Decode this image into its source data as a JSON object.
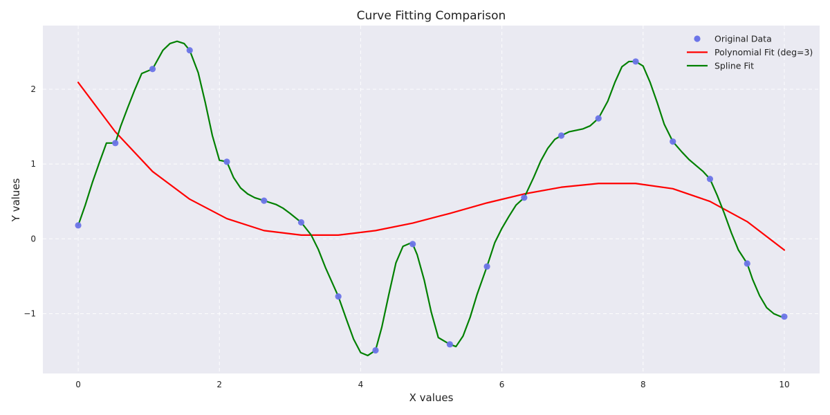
{
  "chart_data": {
    "type": "line",
    "title": "Curve Fitting Comparison",
    "xlabel": "X values",
    "ylabel": "Y values",
    "xlim": [
      -0.5,
      10.5
    ],
    "ylim": [
      -1.8,
      2.85
    ],
    "xticks": [
      0,
      2,
      4,
      6,
      8,
      10
    ],
    "xtick_labels": [
      "0",
      "2",
      "4",
      "6",
      "8",
      "10"
    ],
    "yticks": [
      -1,
      0,
      1,
      2
    ],
    "ytick_labels": [
      "−1",
      "0",
      "1",
      "2"
    ],
    "grid": true,
    "legend_position": "top-right",
    "background_color": "#eaeaf2",
    "series": [
      {
        "name": "Original Data",
        "kind": "scatter",
        "color": "#6b74e8",
        "x": [
          0,
          0.526,
          1.053,
          1.579,
          2.105,
          2.632,
          3.158,
          3.684,
          4.211,
          4.737,
          5.263,
          5.789,
          6.316,
          6.842,
          7.368,
          7.895,
          8.421,
          8.947,
          9.474,
          10
        ],
        "y": [
          0.18,
          1.28,
          2.27,
          2.52,
          1.03,
          0.51,
          0.22,
          -0.77,
          -1.49,
          -0.07,
          -1.41,
          -0.37,
          0.55,
          1.38,
          1.61,
          2.37,
          1.3,
          0.8,
          -0.33,
          -1.04
        ]
      },
      {
        "name": "Polynomial Fit (deg=3)",
        "kind": "line",
        "color": "#ff0000",
        "x": [
          0,
          0.526,
          1.053,
          1.579,
          2.105,
          2.632,
          3.158,
          3.684,
          4.211,
          4.737,
          5.263,
          5.789,
          6.316,
          6.842,
          7.368,
          7.895,
          8.421,
          8.947,
          9.474,
          10
        ],
        "y": [
          2.09,
          1.43,
          0.9,
          0.53,
          0.27,
          0.11,
          0.05,
          0.05,
          0.11,
          0.21,
          0.34,
          0.48,
          0.6,
          0.69,
          0.74,
          0.74,
          0.67,
          0.5,
          0.23,
          -0.15
        ]
      },
      {
        "name": "Spline Fit",
        "kind": "line",
        "color": "#008000",
        "x": [
          0,
          0.1,
          0.2,
          0.3,
          0.4,
          0.526,
          0.6,
          0.7,
          0.8,
          0.9,
          1.053,
          1.2,
          1.3,
          1.4,
          1.5,
          1.579,
          1.7,
          1.8,
          1.9,
          2.0,
          2.105,
          2.2,
          2.3,
          2.4,
          2.5,
          2.632,
          2.8,
          2.9,
          3.0,
          3.158,
          3.3,
          3.4,
          3.5,
          3.684,
          3.8,
          3.9,
          4.0,
          4.1,
          4.211,
          4.3,
          4.4,
          4.5,
          4.6,
          4.7,
          4.737,
          4.8,
          4.9,
          5.0,
          5.1,
          5.263,
          5.35,
          5.45,
          5.55,
          5.65,
          5.789,
          5.9,
          6.0,
          6.1,
          6.2,
          6.316,
          6.45,
          6.55,
          6.65,
          6.75,
          6.842,
          6.95,
          7.05,
          7.15,
          7.25,
          7.368,
          7.5,
          7.6,
          7.7,
          7.8,
          7.895,
          8.0,
          8.1,
          8.2,
          8.3,
          8.421,
          8.55,
          8.65,
          8.75,
          8.85,
          8.947,
          9.05,
          9.15,
          9.25,
          9.35,
          9.474,
          9.55,
          9.65,
          9.75,
          9.85,
          9.95,
          10
        ],
        "y": [
          0.18,
          0.45,
          0.75,
          1.02,
          1.28,
          1.28,
          1.5,
          1.75,
          1.99,
          2.21,
          2.27,
          2.52,
          2.61,
          2.64,
          2.61,
          2.52,
          2.22,
          1.82,
          1.38,
          1.05,
          1.03,
          0.82,
          0.68,
          0.6,
          0.55,
          0.51,
          0.46,
          0.41,
          0.34,
          0.22,
          0.05,
          -0.14,
          -0.38,
          -0.77,
          -1.08,
          -1.34,
          -1.52,
          -1.56,
          -1.49,
          -1.18,
          -0.74,
          -0.32,
          -0.1,
          -0.06,
          -0.07,
          -0.21,
          -0.55,
          -0.98,
          -1.32,
          -1.41,
          -1.44,
          -1.3,
          -1.05,
          -0.74,
          -0.37,
          -0.05,
          0.14,
          0.3,
          0.45,
          0.55,
          0.82,
          1.04,
          1.21,
          1.33,
          1.38,
          1.43,
          1.45,
          1.47,
          1.51,
          1.61,
          1.84,
          2.09,
          2.3,
          2.37,
          2.37,
          2.31,
          2.09,
          1.82,
          1.53,
          1.3,
          1.16,
          1.06,
          0.98,
          0.9,
          0.8,
          0.58,
          0.34,
          0.08,
          -0.15,
          -0.33,
          -0.54,
          -0.76,
          -0.92,
          -1.0,
          -1.04,
          -1.04
        ]
      }
    ]
  }
}
